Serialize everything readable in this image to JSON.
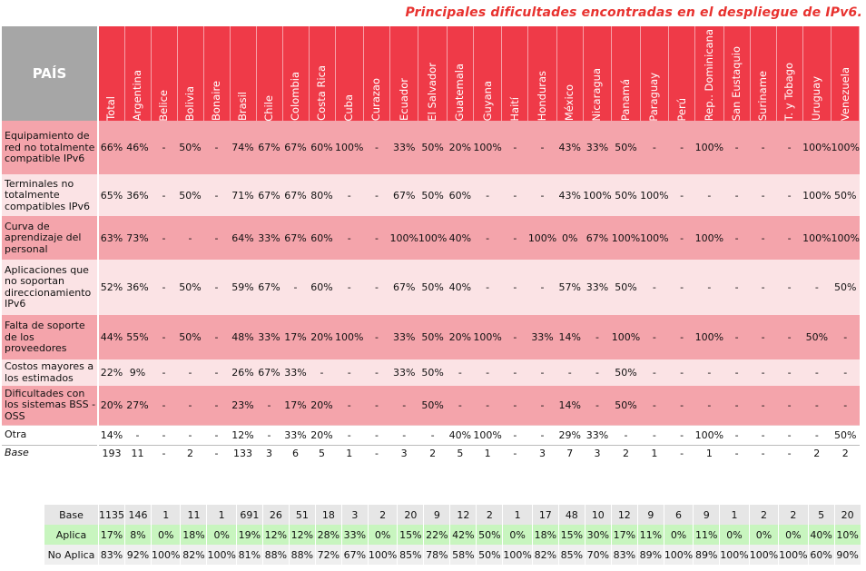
{
  "title": "Principales dificultades encontradas en el despliegue de IPv6.",
  "header": {
    "corner": "PAÍS",
    "columns": [
      "Total",
      "Argentina",
      "Belice",
      "Bolivia",
      "Bonaire",
      "Brasil",
      "Chile",
      "Colombia",
      "Costa Rica",
      "Cuba",
      "Curazao",
      "Ecuador",
      "El Salvador",
      "Guatemala",
      "Guyana",
      "Haití",
      "Honduras",
      "México",
      "Nicaragua",
      "Panamá",
      "Paraguay",
      "Perú",
      "Rep.. Dominicana",
      "San Eustaquio",
      "Suriname",
      "T. y Tobago",
      "Uruguay",
      "Venezuela"
    ]
  },
  "rows": [
    {
      "label": "Equipamiento de red no totalmente compatible IPv6",
      "values": [
        "66%",
        "46%",
        "-",
        "50%",
        "-",
        "74%",
        "67%",
        "67%",
        "60%",
        "100%",
        "-",
        "33%",
        "50%",
        "20%",
        "100%",
        "-",
        "-",
        "43%",
        "33%",
        "50%",
        "-",
        "-",
        "100%",
        "-",
        "-",
        "-",
        "100%",
        "100%"
      ]
    },
    {
      "label": "Terminales no totalmente compatibles IPv6",
      "values": [
        "65%",
        "36%",
        "-",
        "50%",
        "-",
        "71%",
        "67%",
        "67%",
        "80%",
        "-",
        "-",
        "67%",
        "50%",
        "60%",
        "-",
        "-",
        "-",
        "43%",
        "100%",
        "50%",
        "100%",
        "-",
        "-",
        "-",
        "-",
        "-",
        "100%",
        "50%"
      ]
    },
    {
      "label": "Curva de aprendizaje del personal",
      "values": [
        "63%",
        "73%",
        "-",
        "-",
        "-",
        "64%",
        "33%",
        "67%",
        "60%",
        "-",
        "-",
        "100%",
        "100%",
        "40%",
        "-",
        "-",
        "100%",
        "0%",
        "67%",
        "100%",
        "100%",
        "-",
        "100%",
        "-",
        "-",
        "-",
        "100%",
        "100%"
      ]
    },
    {
      "label": "Aplicaciones que no soportan direccionamiento IPv6",
      "values": [
        "52%",
        "36%",
        "-",
        "50%",
        "-",
        "59%",
        "67%",
        "-",
        "60%",
        "-",
        "-",
        "67%",
        "50%",
        "40%",
        "-",
        "-",
        "-",
        "57%",
        "33%",
        "50%",
        "-",
        "-",
        "-",
        "-",
        "-",
        "-",
        "-",
        "50%"
      ]
    },
    {
      "label": "Falta de soporte de los proveedores",
      "values": [
        "44%",
        "55%",
        "-",
        "50%",
        "-",
        "48%",
        "33%",
        "17%",
        "20%",
        "100%",
        "-",
        "33%",
        "50%",
        "20%",
        "100%",
        "-",
        "33%",
        "14%",
        "-",
        "100%",
        "-",
        "-",
        "100%",
        "-",
        "-",
        "-",
        "50%",
        "-"
      ]
    },
    {
      "label": "Costos mayores a los estimados",
      "values": [
        "22%",
        "9%",
        "-",
        "-",
        "-",
        "26%",
        "67%",
        "33%",
        "-",
        "-",
        "-",
        "33%",
        "50%",
        "-",
        "-",
        "-",
        "-",
        "-",
        "-",
        "50%",
        "-",
        "-",
        "-",
        "-",
        "-",
        "-",
        "-",
        "-"
      ]
    },
    {
      "label": "Dificultades con los sistemas BSS - OSS",
      "values": [
        "20%",
        "27%",
        "-",
        "-",
        "-",
        "23%",
        "-",
        "17%",
        "20%",
        "-",
        "-",
        "-",
        "50%",
        "-",
        "-",
        "-",
        "-",
        "14%",
        "-",
        "50%",
        "-",
        "-",
        "-",
        "-",
        "-",
        "-",
        "-",
        "-"
      ]
    },
    {
      "label": "Otra",
      "values": [
        "14%",
        "-",
        "-",
        "-",
        "-",
        "12%",
        "-",
        "33%",
        "20%",
        "-",
        "-",
        "-",
        "-",
        "40%",
        "100%",
        "-",
        "-",
        "29%",
        "33%",
        "-",
        "-",
        "-",
        "100%",
        "-",
        "-",
        "-",
        "-",
        "50%"
      ]
    },
    {
      "label": "Base",
      "values": [
        "193",
        "11",
        "-",
        "2",
        "-",
        "133",
        "3",
        "6",
        "5",
        "1",
        "-",
        "3",
        "2",
        "5",
        "1",
        "-",
        "3",
        "7",
        "3",
        "2",
        "1",
        "-",
        "1",
        "-",
        "-",
        "-",
        "2",
        "2"
      ]
    }
  ],
  "summary": {
    "base": {
      "label": "Base",
      "values": [
        "1135",
        "146",
        "1",
        "11",
        "1",
        "691",
        "26",
        "51",
        "18",
        "3",
        "2",
        "20",
        "9",
        "12",
        "2",
        "1",
        "17",
        "48",
        "10",
        "12",
        "9",
        "6",
        "9",
        "1",
        "2",
        "2",
        "5",
        "20"
      ]
    },
    "aplica": {
      "label": "Aplica",
      "values": [
        "17%",
        "8%",
        "0%",
        "18%",
        "0%",
        "19%",
        "12%",
        "12%",
        "28%",
        "33%",
        "0%",
        "15%",
        "22%",
        "42%",
        "50%",
        "0%",
        "18%",
        "15%",
        "30%",
        "17%",
        "11%",
        "0%",
        "11%",
        "0%",
        "0%",
        "0%",
        "40%",
        "10%"
      ]
    },
    "no_aplica": {
      "label": "No Aplica",
      "values": [
        "83%",
        "92%",
        "100%",
        "82%",
        "100%",
        "81%",
        "88%",
        "88%",
        "72%",
        "67%",
        "100%",
        "85%",
        "78%",
        "58%",
        "50%",
        "100%",
        "82%",
        "85%",
        "70%",
        "83%",
        "89%",
        "100%",
        "89%",
        "100%",
        "100%",
        "100%",
        "60%",
        "90%"
      ]
    }
  }
}
